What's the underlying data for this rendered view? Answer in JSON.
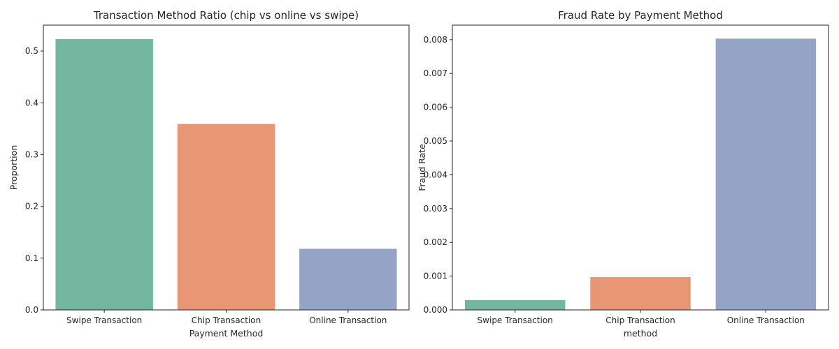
{
  "chart_data": [
    {
      "type": "bar",
      "title": "Transaction Method Ratio (chip vs online vs swipe)",
      "xlabel": "Payment Method",
      "ylabel": "Proportion",
      "categories": [
        "Swipe Transaction",
        "Chip Transaction",
        "Online Transaction"
      ],
      "values": [
        0.523,
        0.359,
        0.118
      ],
      "colors": [
        "#73b69f",
        "#e99674",
        "#95a4c4"
      ],
      "ylim": [
        0,
        0.55
      ],
      "yticks": [
        0.0,
        0.1,
        0.2,
        0.3,
        0.4,
        0.5
      ],
      "ytick_labels": [
        "0.0",
        "0.1",
        "0.2",
        "0.3",
        "0.4",
        "0.5"
      ],
      "grid": false
    },
    {
      "type": "bar",
      "title": "Fraud Rate by Payment Method",
      "xlabel": "method",
      "ylabel": "Fraud Rate",
      "categories": [
        "Swipe Transaction",
        "Chip Transaction",
        "Online Transaction"
      ],
      "values": [
        0.00029,
        0.00097,
        0.00803
      ],
      "colors": [
        "#73b69f",
        "#e99674",
        "#95a4c4"
      ],
      "ylim": [
        0,
        0.00843
      ],
      "yticks": [
        0,
        0.001,
        0.002,
        0.003,
        0.004,
        0.005,
        0.006,
        0.007,
        0.008
      ],
      "ytick_labels": [
        "0.000",
        "0.001",
        "0.002",
        "0.003",
        "0.004",
        "0.005",
        "0.006",
        "0.007",
        "0.008"
      ],
      "grid": false
    }
  ]
}
